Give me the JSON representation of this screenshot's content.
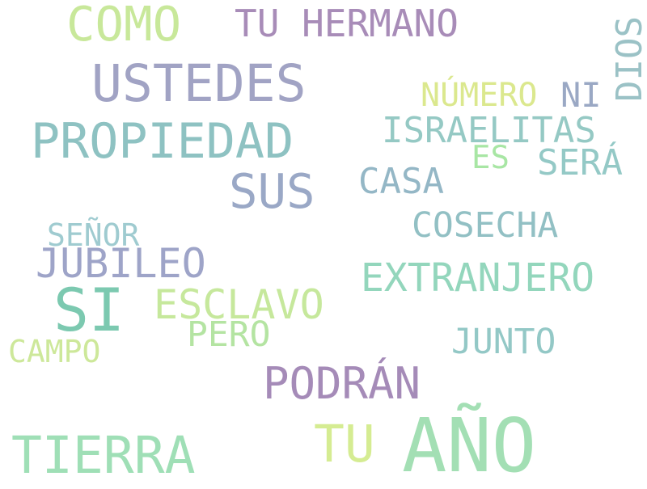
{
  "words": {
    "como": {
      "text": "COMO",
      "color": "#c8e89a"
    },
    "tu_hermano": {
      "text": "TU HERMANO",
      "color": "#a88cb8"
    },
    "dios": {
      "text": "DIOS",
      "color": "#9bc2c6"
    },
    "ustedes": {
      "text": "USTEDES",
      "color": "#a1a3c4"
    },
    "numero": {
      "text": "NÚMERO",
      "color": "#dbe88e"
    },
    "ni": {
      "text": "NI",
      "color": "#9aa8c4"
    },
    "propiedad": {
      "text": "PROPIEDAD",
      "color": "#8ec2c2"
    },
    "israelitas": {
      "text": "ISRAELITAS",
      "color": "#95c9c4"
    },
    "es": {
      "text": "ES",
      "color": "#a8e6a4"
    },
    "sera": {
      "text": "SERÁ",
      "color": "#94c9c6"
    },
    "sus": {
      "text": "SUS",
      "color": "#9aa8c6"
    },
    "casa": {
      "text": "CASA",
      "color": "#94b7c6"
    },
    "senor": {
      "text": "SEÑOR",
      "color": "#9fcbd0"
    },
    "cosecha": {
      "text": "COSECHA",
      "color": "#92c0c4"
    },
    "jubileo": {
      "text": "JUBILEO",
      "color": "#9ea4c8"
    },
    "extranjero": {
      "text": "EXTRANJERO",
      "color": "#93d6bc"
    },
    "si": {
      "text": "SI",
      "color": "#7cc9b0"
    },
    "esclavo": {
      "text": "ESCLAVO",
      "color": "#c6e89c"
    },
    "pero": {
      "text": "PERO",
      "color": "#b4e4a2"
    },
    "campo": {
      "text": "CAMPO",
      "color": "#cde89a"
    },
    "junto": {
      "text": "JUNTO",
      "color": "#93c8c6"
    },
    "podran": {
      "text": "PODRÁN",
      "color": "#a58bb8"
    },
    "tu": {
      "text": "TU",
      "color": "#d5ec92"
    },
    "ano": {
      "text": "AÑO",
      "color": "#a3dfb4"
    },
    "tierra": {
      "text": "TIERRA",
      "color": "#9fdfb6"
    }
  }
}
